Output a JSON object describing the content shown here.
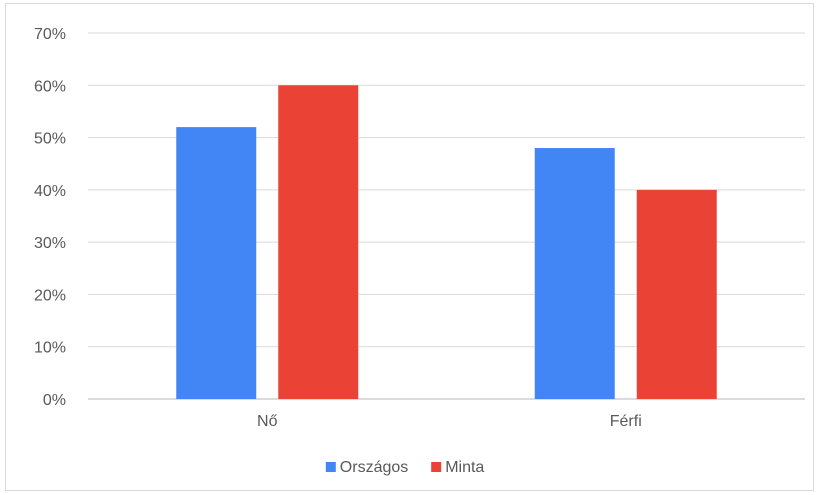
{
  "chart_data": {
    "type": "bar",
    "categories": [
      "Nő",
      "Férfi"
    ],
    "series": [
      {
        "name": "Országos",
        "values": [
          52,
          48
        ],
        "color": "#4285f4"
      },
      {
        "name": "Minta",
        "values": [
          60,
          40
        ],
        "color": "#ea4335"
      }
    ],
    "ylim": [
      0,
      70
    ],
    "yticks": [
      0,
      10,
      20,
      30,
      40,
      50,
      60,
      70
    ],
    "ytick_labels": [
      "0%",
      "10%",
      "20%",
      "30%",
      "40%",
      "50%",
      "60%",
      "70%"
    ],
    "grid": true,
    "legend": "bottom",
    "title": "",
    "xlabel": "",
    "ylabel": ""
  }
}
